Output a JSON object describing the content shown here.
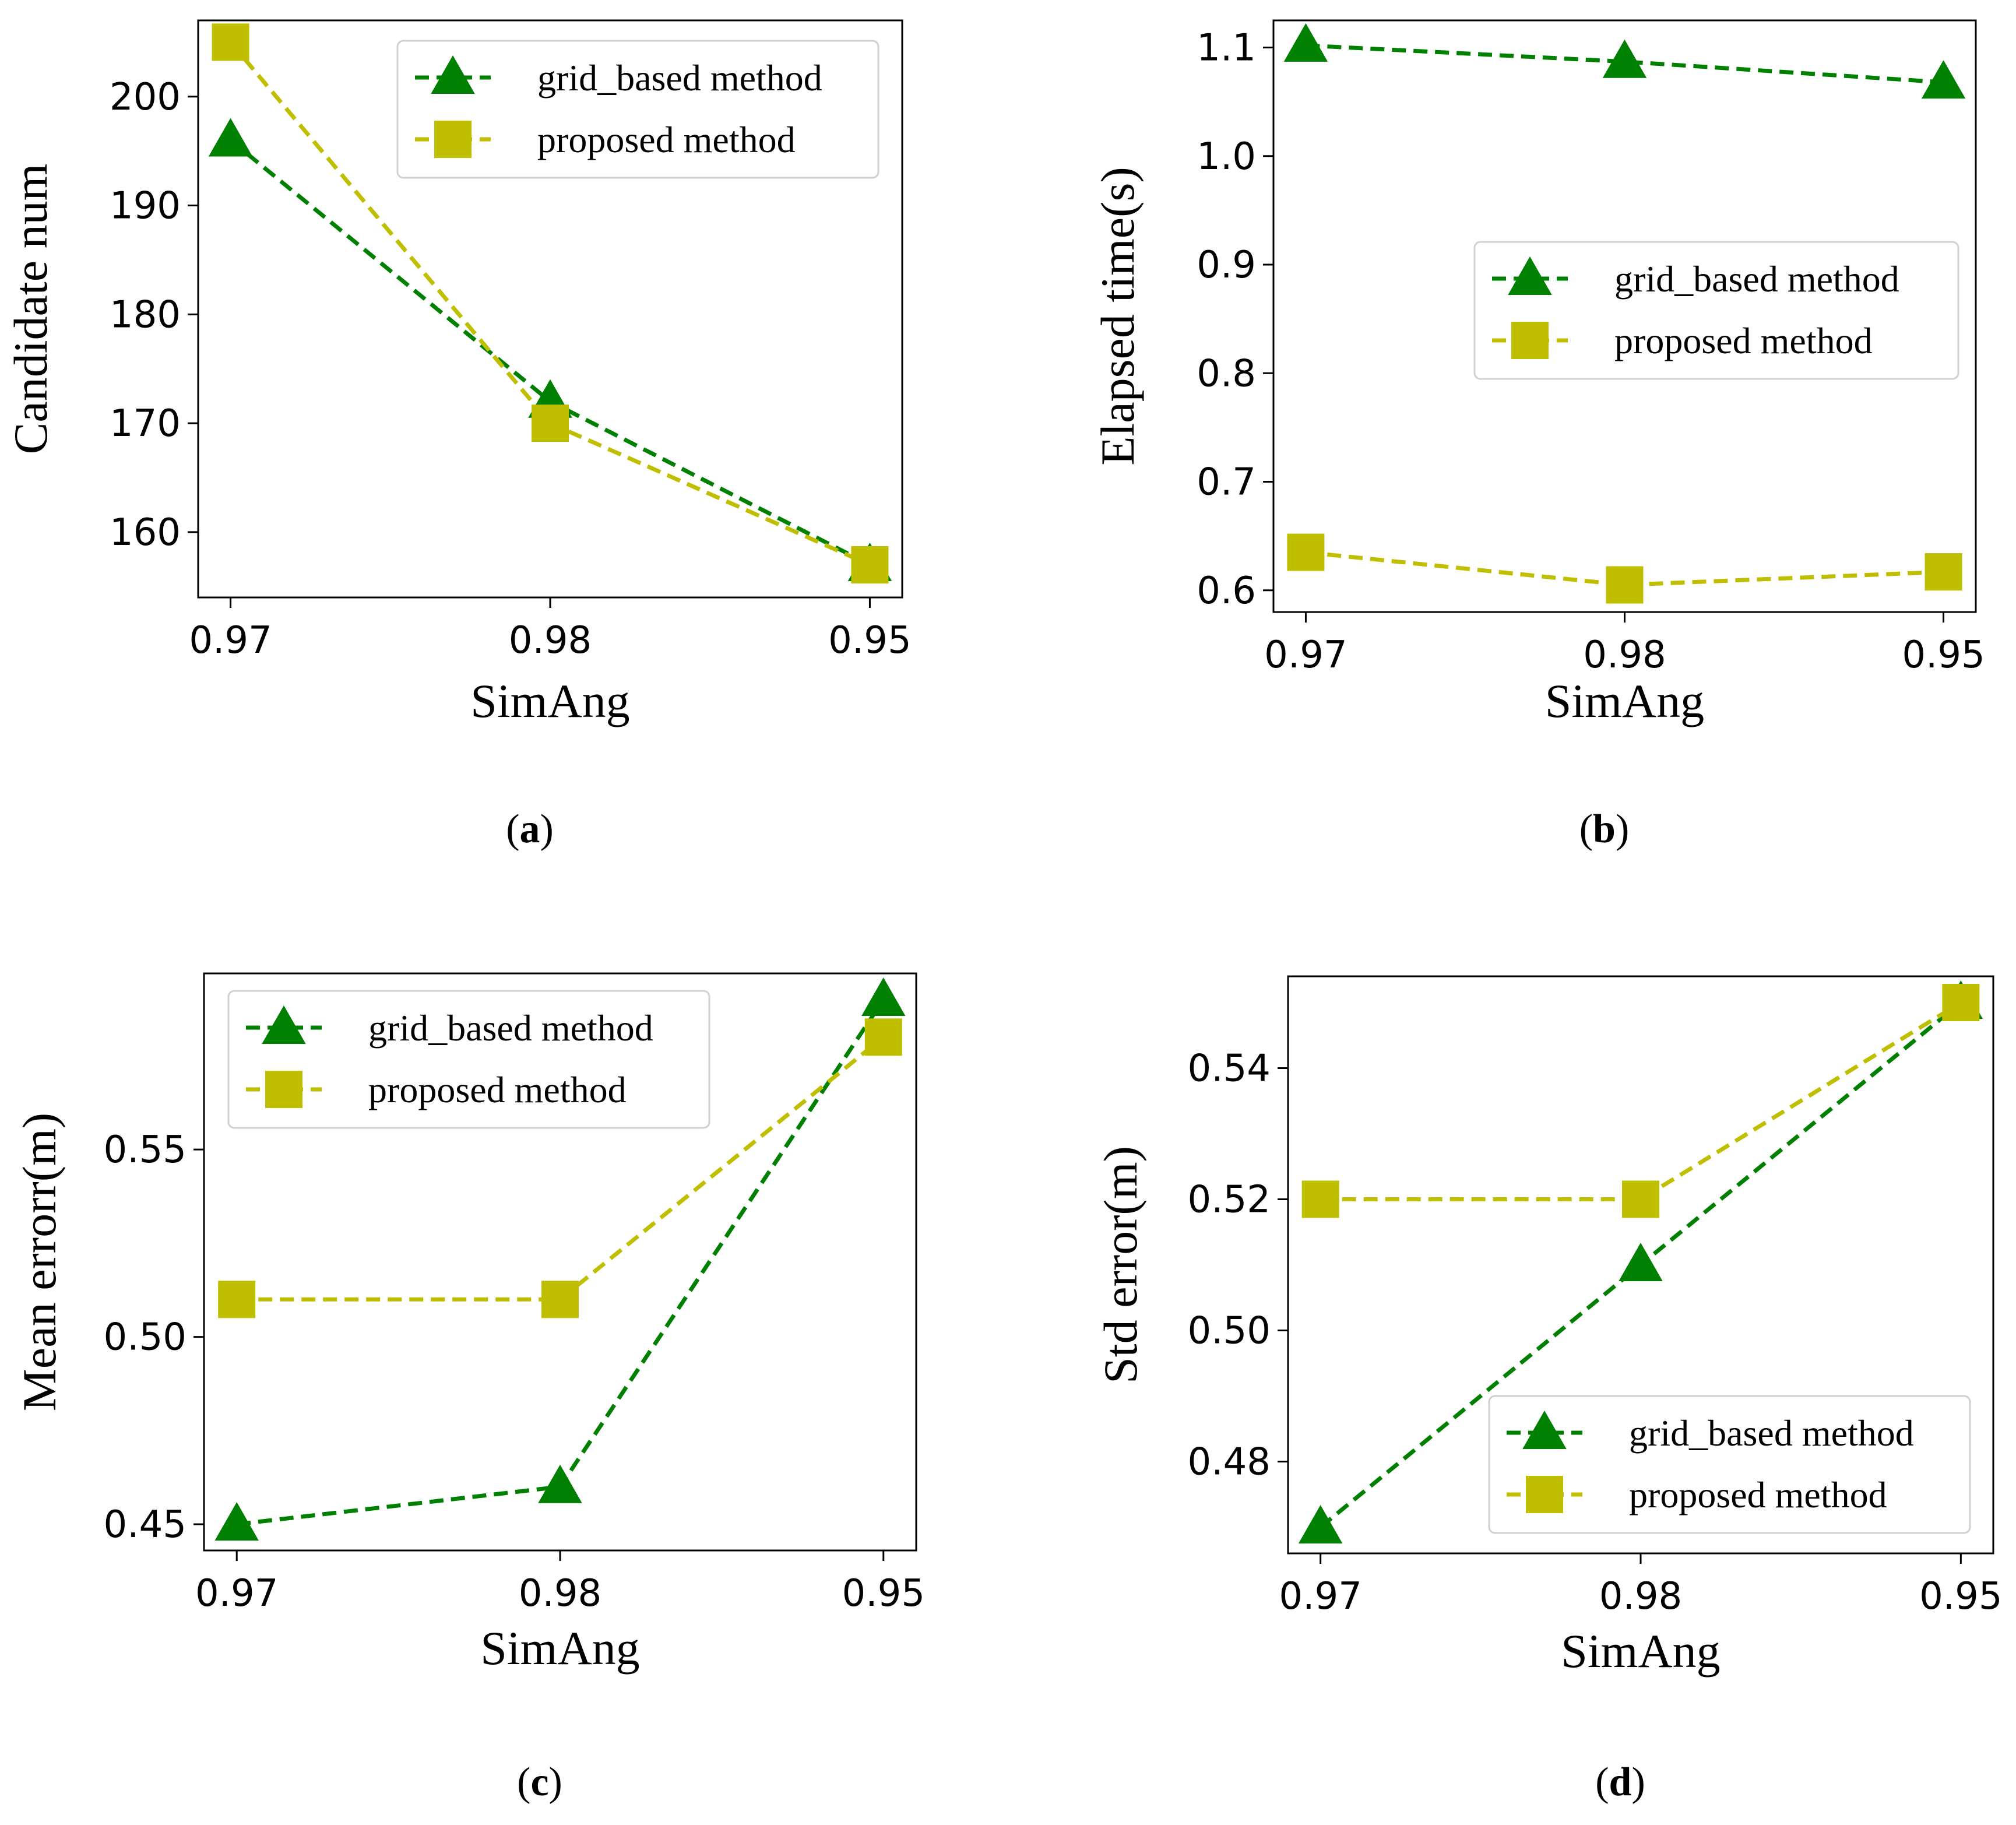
{
  "colors": {
    "grid_based": "#008000",
    "proposed": "#bfbf00"
  },
  "chart_data": [
    {
      "type": "line",
      "caption": "a",
      "xlabel": "SimAng",
      "ylabel": "Candidate num",
      "categories": [
        "0.97",
        "0.98",
        "0.95"
      ],
      "ylim": [
        154,
        207
      ],
      "yticks": [
        160,
        170,
        180,
        190,
        200
      ],
      "ytick_labels": [
        "160",
        "170",
        "180",
        "190",
        "200"
      ],
      "legend_position": "upper-right",
      "series": [
        {
          "name": "grid_based method",
          "marker": "triangle",
          "values": [
            196,
            172,
            157
          ]
        },
        {
          "name": "proposed method",
          "marker": "square",
          "values": [
            205,
            170,
            157
          ]
        }
      ]
    },
    {
      "type": "line",
      "caption": "b",
      "xlabel": "SimAng",
      "ylabel": "Elapsed time(s)",
      "categories": [
        "0.97",
        "0.98",
        "0.95"
      ],
      "ylim": [
        0.58,
        1.125
      ],
      "yticks": [
        0.6,
        0.7,
        0.8,
        0.9,
        1.0,
        1.1
      ],
      "ytick_labels": [
        "0.6",
        "0.7",
        "0.8",
        "0.9",
        "1.0",
        "1.1"
      ],
      "legend_position": "center-right",
      "series": [
        {
          "name": "grid_based method",
          "marker": "triangle",
          "values": [
            1.102,
            1.087,
            1.068
          ]
        },
        {
          "name": "proposed method",
          "marker": "square",
          "values": [
            0.635,
            0.605,
            0.617
          ]
        }
      ]
    },
    {
      "type": "line",
      "caption": "c",
      "xlabel": "SimAng",
      "ylabel": "Mean errorr(m)",
      "categories": [
        "0.97",
        "0.98",
        "0.95"
      ],
      "ylim": [
        0.443,
        0.597
      ],
      "yticks": [
        0.45,
        0.5,
        0.55
      ],
      "ytick_labels": [
        "0.45",
        "0.50",
        "0.55"
      ],
      "legend_position": "upper-left",
      "series": [
        {
          "name": "grid_based method",
          "marker": "triangle",
          "values": [
            0.45,
            0.46,
            0.59
          ]
        },
        {
          "name": "proposed method",
          "marker": "square",
          "values": [
            0.51,
            0.51,
            0.58
          ]
        }
      ]
    },
    {
      "type": "line",
      "caption": "d",
      "xlabel": "SimAng",
      "ylabel": "Std error(m)",
      "categories": [
        "0.97",
        "0.98",
        "0.95"
      ],
      "ylim": [
        0.466,
        0.554
      ],
      "yticks": [
        0.48,
        0.5,
        0.52,
        0.54
      ],
      "ytick_labels": [
        "0.48",
        "0.50",
        "0.52",
        "0.54"
      ],
      "legend_position": "lower-right",
      "series": [
        {
          "name": "grid_based method",
          "marker": "triangle",
          "values": [
            0.47,
            0.51,
            0.55
          ]
        },
        {
          "name": "proposed method",
          "marker": "square",
          "values": [
            0.52,
            0.52,
            0.55
          ]
        }
      ]
    }
  ]
}
